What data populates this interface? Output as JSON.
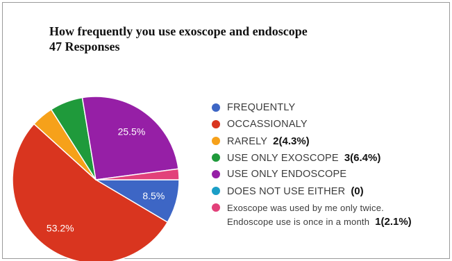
{
  "chart_data": {
    "type": "pie",
    "title_line1": "How frequently you use exoscope and endoscope",
    "title_line2": "47 Responses",
    "slices": [
      {
        "label": "FREQUENTLY",
        "value": 8.5,
        "color": "#3d66c5",
        "data_label": "8.5%",
        "annotation": ""
      },
      {
        "label": "OCCASSIONALY",
        "value": 53.2,
        "color": "#d9351f",
        "data_label": "53.2%",
        "annotation": ""
      },
      {
        "label": "RARELY",
        "value": 4.3,
        "color": "#f6a11a",
        "data_label": "",
        "annotation": "2(4.3%)"
      },
      {
        "label": "USE ONLY EXOSCOPE",
        "value": 6.4,
        "color": "#1f9a3b",
        "data_label": "",
        "annotation": "3(6.4%)"
      },
      {
        "label": "USE ONLY ENDOSCOPE",
        "value": 25.5,
        "color": "#961fa6",
        "data_label": "25.5%",
        "annotation": ""
      },
      {
        "label": "DOES NOT USE EITHER",
        "value": 0,
        "color": "#1b9ec6",
        "data_label": "",
        "annotation": "(0)"
      },
      {
        "label_lines": [
          "Exoscope was used by me only twice.",
          "Endoscope use is once in a month"
        ],
        "value": 2.1,
        "color": "#e2417a",
        "data_label": "",
        "annotation": "1(2.1%)"
      }
    ],
    "legend_position": "right"
  }
}
